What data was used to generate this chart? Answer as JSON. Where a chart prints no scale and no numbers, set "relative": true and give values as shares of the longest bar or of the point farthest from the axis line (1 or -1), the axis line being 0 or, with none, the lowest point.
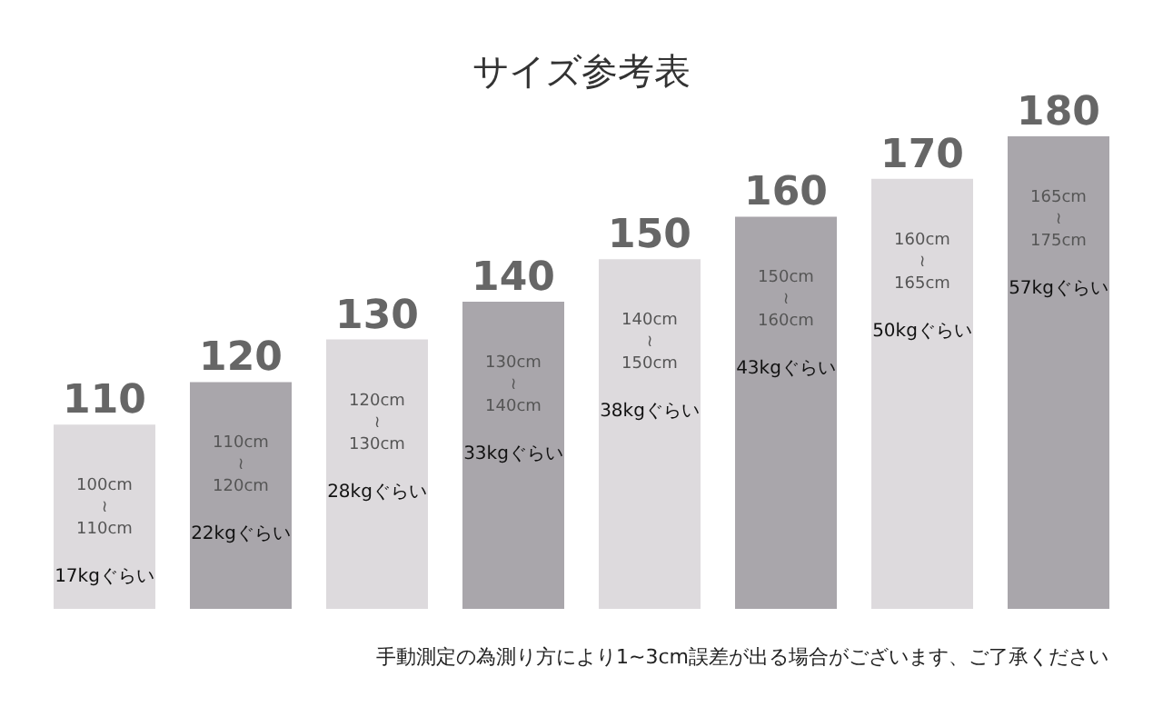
{
  "chart_data": {
    "type": "bar",
    "title": "サイズ参考表",
    "relative": true,
    "categories": [
      "110",
      "120",
      "130",
      "140",
      "150",
      "160",
      "170",
      "180"
    ],
    "values": [
      0.39,
      0.48,
      0.57,
      0.65,
      0.74,
      0.83,
      0.91,
      1
    ],
    "colors": [
      "#dddadd",
      "#a9a6ab",
      "#dddadd",
      "#a9a6ab",
      "#dddadd",
      "#a9a6ab",
      "#dddadd",
      "#a9a6ab"
    ],
    "annotations": [
      "100cm\n≀\n110cm",
      "17kgぐらい",
      "110cm\n≀\n120cm",
      "22kgぐらい",
      "120cm\n≀\n130cm",
      "28kgぐらい",
      "130cm\n≀\n140cm",
      "33kgぐらい",
      "140cm\n≀\n150cm",
      "38kgぐらい",
      "150cm\n≀\n160cm",
      "43kgぐらい",
      "160cm\n≀\n165cm",
      "50kgぐらい",
      "165cm\n≀\n175cm",
      "57kgぐらい",
      "手動測定の為測り方により1~3cm誤差が出る場合がございます、ご了承ください"
    ]
  }
}
